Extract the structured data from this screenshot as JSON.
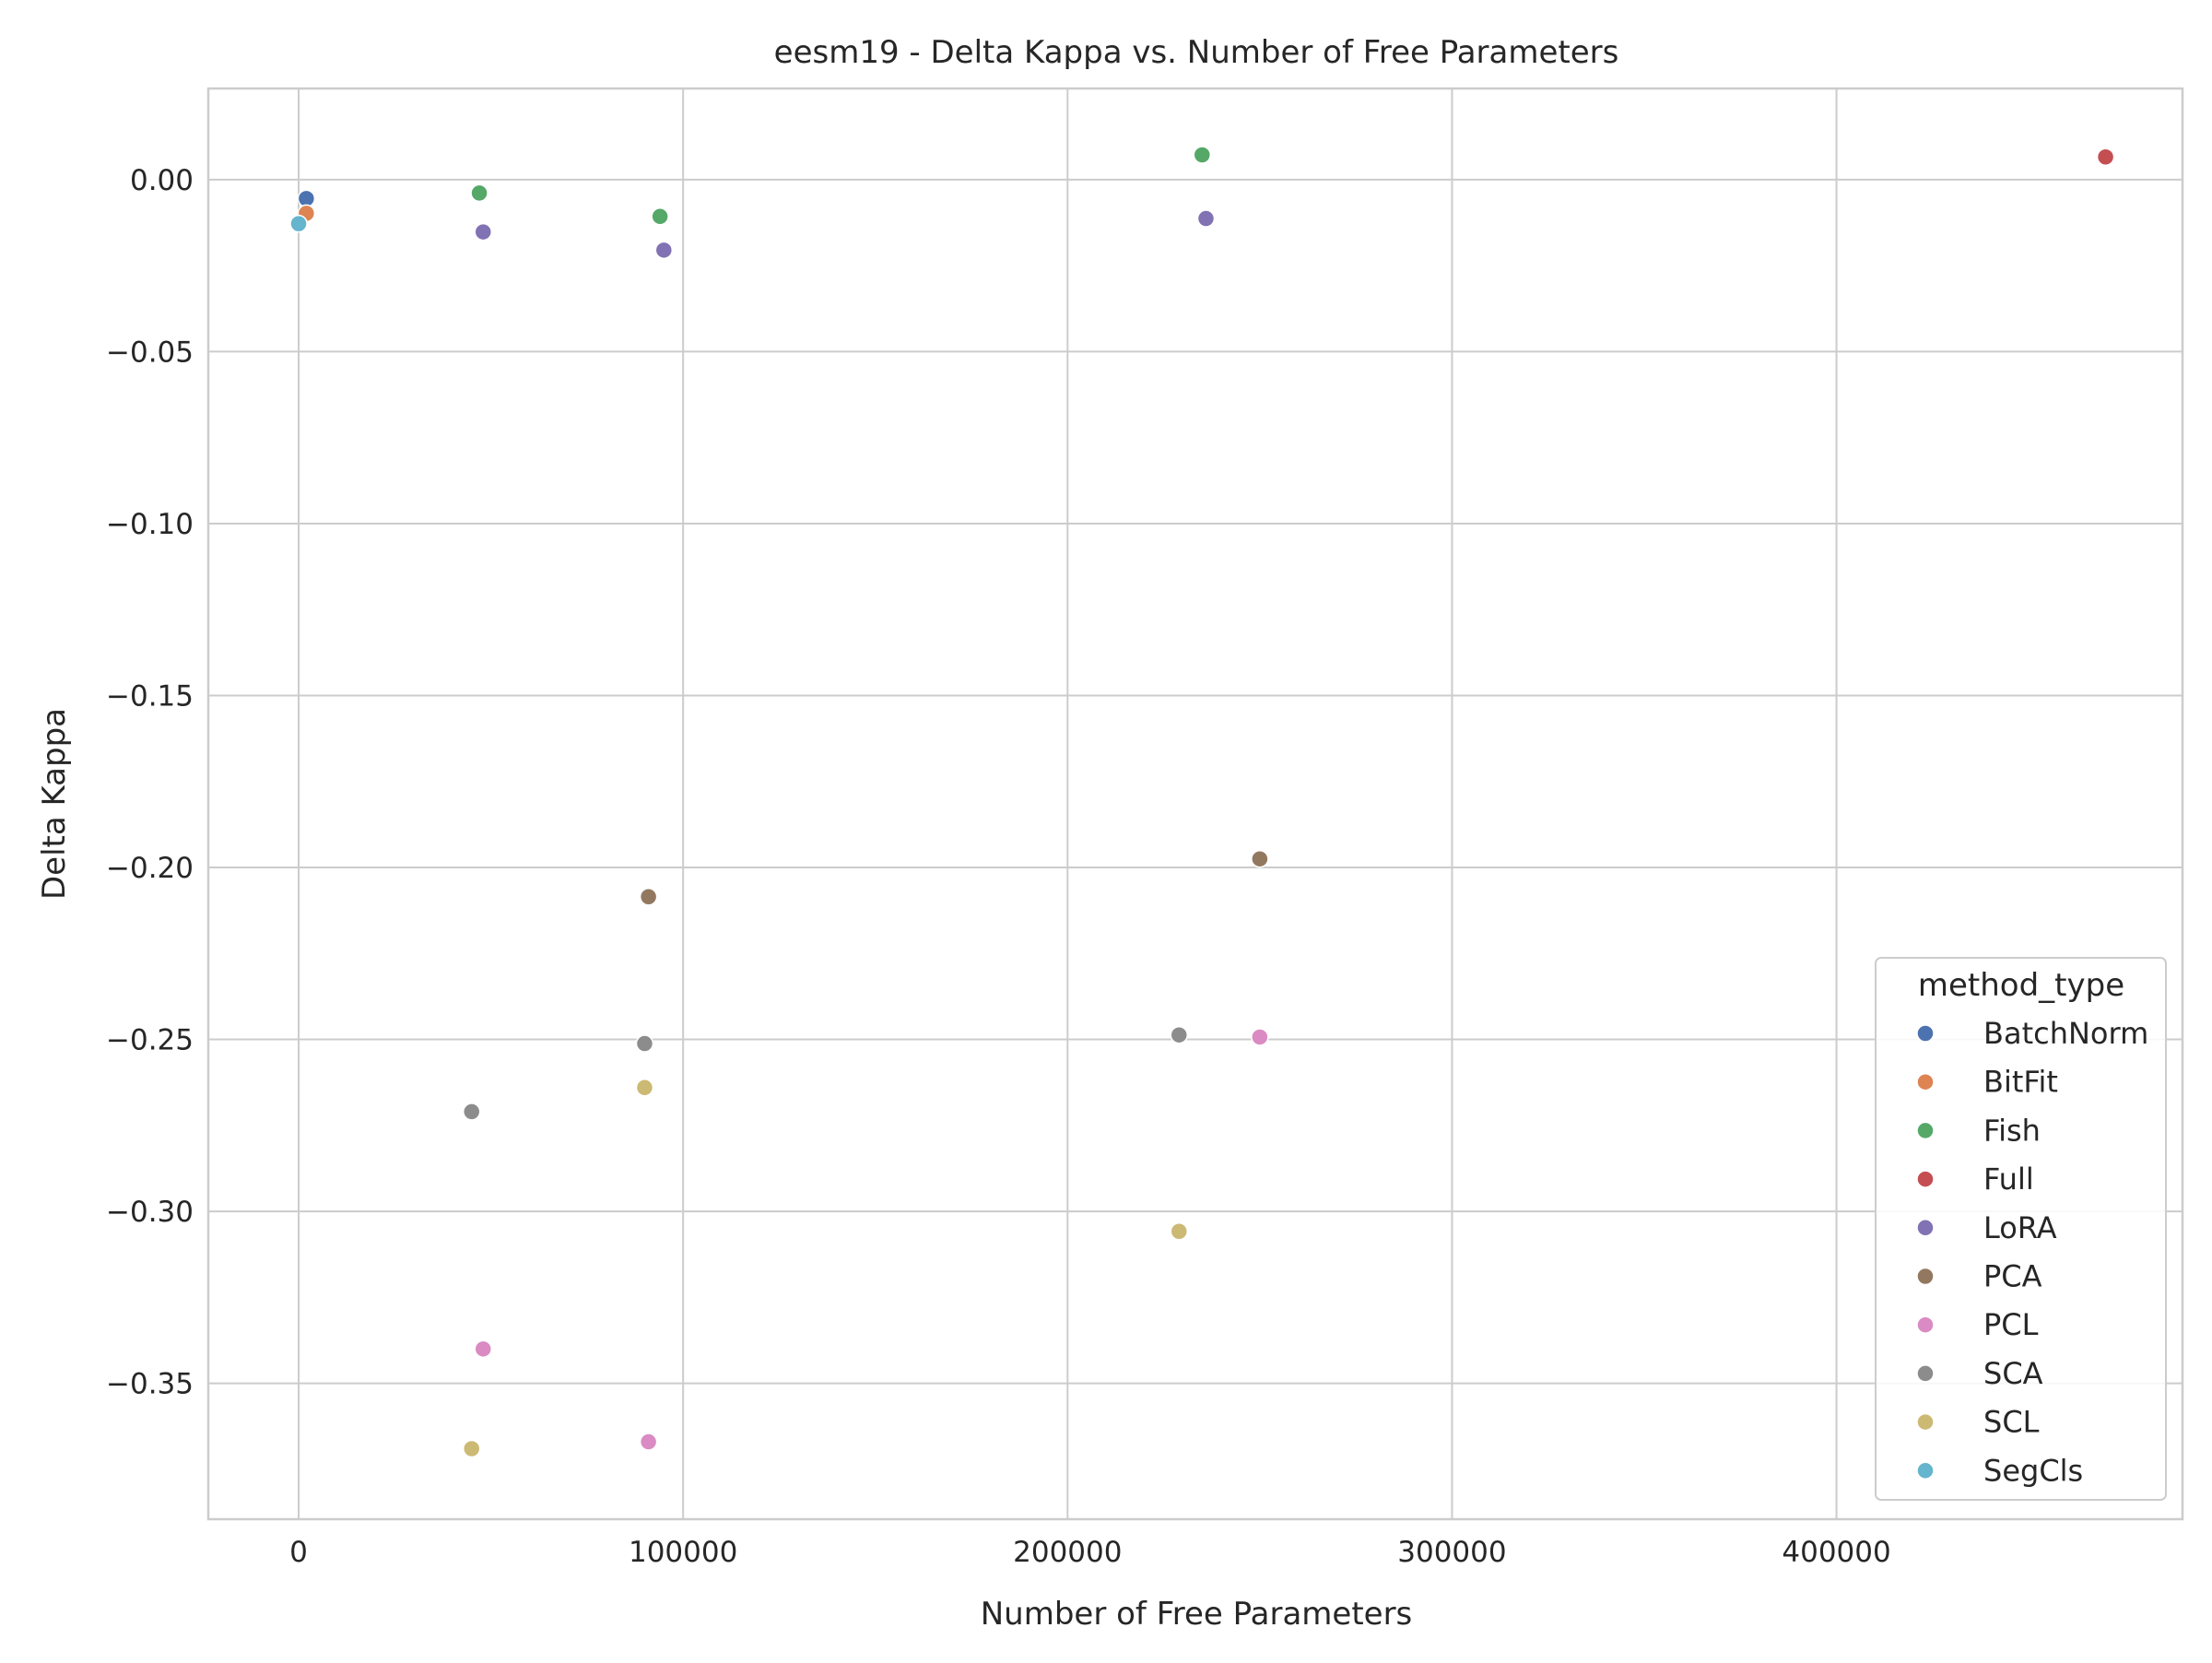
{
  "chart_data": {
    "type": "scatter",
    "title": "eesm19 - Delta Kappa vs. Number of Free Parameters",
    "xlabel": "Number of Free Parameters",
    "ylabel": "Delta Kappa",
    "xlim": [
      -23500,
      490000
    ],
    "ylim": [
      -0.3895,
      0.0265
    ],
    "xticks": [
      0,
      100000,
      200000,
      300000,
      400000
    ],
    "xtick_labels": [
      "0",
      "100000",
      "200000",
      "300000",
      "400000"
    ],
    "yticks": [
      0.0,
      -0.05,
      -0.1,
      -0.15,
      -0.2,
      -0.25,
      -0.3,
      -0.35
    ],
    "ytick_labels": [
      "0.00",
      "−0.05",
      "−0.10",
      "−0.15",
      "−0.20",
      "−0.25",
      "−0.30",
      "−0.35"
    ],
    "grid": true,
    "legend": {
      "title": "method_type",
      "placement": "lower-right"
    },
    "series": [
      {
        "name": "BatchNorm",
        "color": "#4c72b0",
        "points": [
          [
            2000,
            -0.0055
          ]
        ]
      },
      {
        "name": "BitFit",
        "color": "#dd8452",
        "points": [
          [
            2000,
            -0.0098
          ]
        ]
      },
      {
        "name": "Fish",
        "color": "#55a868",
        "points": [
          [
            47000,
            -0.0039
          ],
          [
            94000,
            -0.0107
          ],
          [
            235000,
            0.0072
          ]
        ]
      },
      {
        "name": "Full",
        "color": "#c44e52",
        "points": [
          [
            470000,
            0.0066
          ]
        ]
      },
      {
        "name": "LoRA",
        "color": "#8172b3",
        "points": [
          [
            48000,
            -0.0152
          ],
          [
            95000,
            -0.0205
          ],
          [
            236000,
            -0.0113
          ]
        ]
      },
      {
        "name": "PCA",
        "color": "#937860",
        "points": [
          [
            91000,
            -0.2085
          ],
          [
            250000,
            -0.1975
          ]
        ]
      },
      {
        "name": "PCL",
        "color": "#da8bc3",
        "points": [
          [
            48000,
            -0.34
          ],
          [
            91000,
            -0.367
          ],
          [
            250000,
            -0.2493
          ]
        ]
      },
      {
        "name": "SCA",
        "color": "#8c8c8c",
        "points": [
          [
            45000,
            -0.271
          ],
          [
            90000,
            -0.2512
          ],
          [
            229000,
            -0.2487
          ]
        ]
      },
      {
        "name": "SCL",
        "color": "#ccb974",
        "points": [
          [
            45000,
            -0.369
          ],
          [
            90000,
            -0.264
          ],
          [
            229000,
            -0.3058
          ]
        ]
      },
      {
        "name": "SegCls",
        "color": "#64b5cd",
        "points": [
          [
            0,
            -0.0128
          ]
        ]
      }
    ]
  }
}
